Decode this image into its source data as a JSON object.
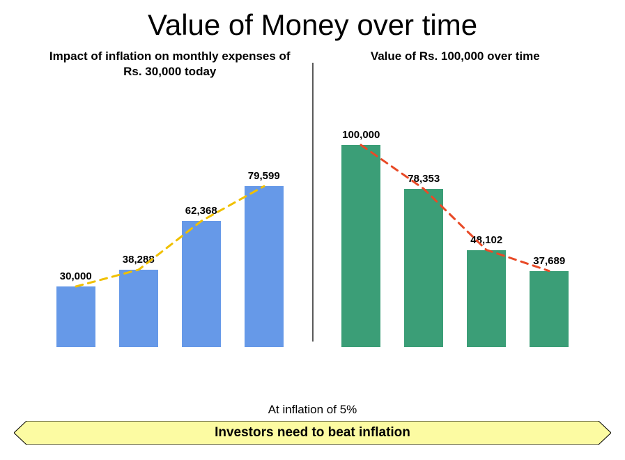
{
  "title": "Value of Money over time",
  "left_chart": {
    "type": "bar",
    "subtitle": "Impact of inflation on monthly expenses of Rs. 30,000 today",
    "bar_color": "#6699e8",
    "trend_color": "#f0c000",
    "trend_dash": "10,8",
    "trend_width": 3,
    "ymax": 100000,
    "bars": [
      {
        "label": "30,000",
        "value": 30000
      },
      {
        "label": "38,288",
        "value": 38288
      },
      {
        "label": "62,368",
        "value": 62368
      },
      {
        "label": "79,599",
        "value": 79599
      }
    ],
    "label_fontsize": 15,
    "label_fontweight": "bold"
  },
  "right_chart": {
    "type": "bar",
    "subtitle": "Value of Rs. 100,000 over time",
    "bar_color": "#3b9e77",
    "trend_color": "#e84a27",
    "trend_dash": "10,8",
    "trend_width": 3,
    "ymax": 100000,
    "bars": [
      {
        "label": "100,000",
        "value": 100000
      },
      {
        "label": "78,353",
        "value": 78353
      },
      {
        "label": "48,102",
        "value": 48102
      },
      {
        "label": "37,689",
        "value": 37689
      }
    ],
    "label_fontsize": 15,
    "label_fontweight": "bold"
  },
  "divider_color": "#595959",
  "footer": {
    "inflation_text": "At inflation of 5%",
    "banner_text": "Investors need to beat inflation",
    "banner_fill": "#fcfba2",
    "banner_stroke": "#000000"
  },
  "background_color": "#ffffff"
}
